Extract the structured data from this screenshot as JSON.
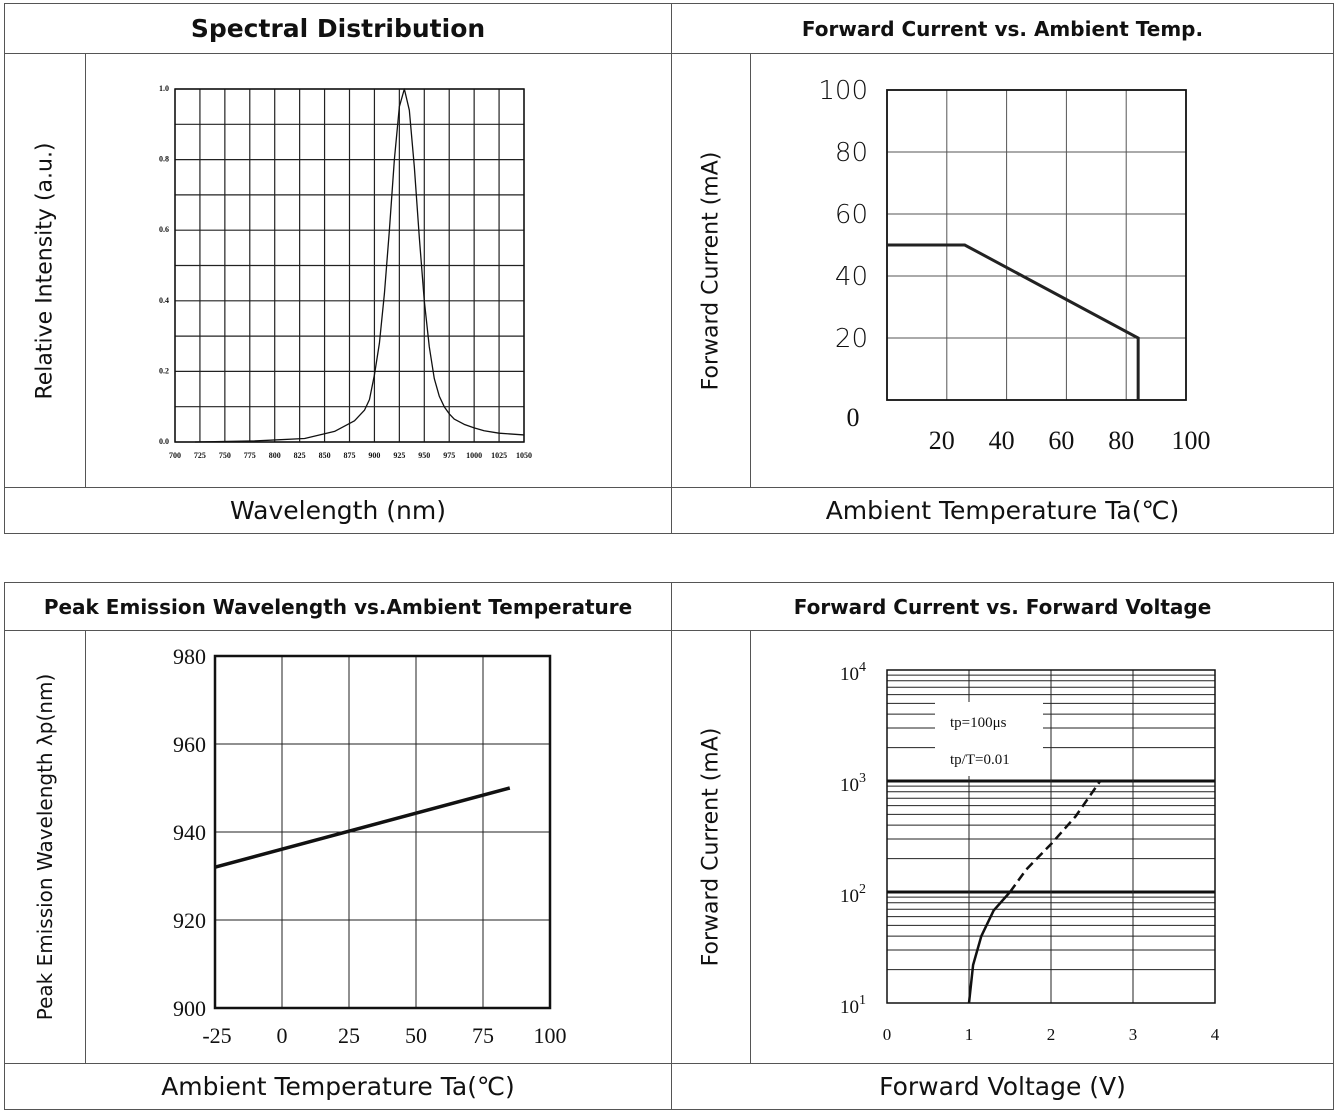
{
  "panels": {
    "spectral": {
      "title": "Spectral Distribution",
      "xlabel": "Wavelength (nm)",
      "ylabel": "Relative Intensity (a.u.)"
    },
    "fc_temp": {
      "title": "Forward Current vs. Ambient Temp.",
      "xlabel": "Ambient Temperature Ta(℃)",
      "ylabel": "Forward Current (mA)"
    },
    "peak_temp": {
      "title": "Peak Emission Wavelength vs.Ambient Temperature",
      "xlabel": "Ambient Temperature Ta(℃)",
      "ylabel": "Peak Emission Wavelength λp(nm)"
    },
    "fc_fv": {
      "title": "Forward Current vs. Forward Voltage",
      "xlabel": "Forward Voltage (V)",
      "ylabel": "Forward Current (mA)"
    }
  },
  "chart_data": [
    {
      "type": "line",
      "title": "Spectral Distribution",
      "xlabel": "Wavelength (nm)",
      "ylabel": "Relative Intensity (a.u.)",
      "x_ticks": [
        "700",
        "725",
        "750",
        "775",
        "800",
        "825",
        "850",
        "875",
        "900",
        "925",
        "950",
        "975",
        "1000",
        "1025",
        "1050"
      ],
      "y_ticks": [
        "0.0",
        "0.2",
        "0.4",
        "0.6",
        "0.8",
        "1.0"
      ],
      "xlim": [
        700,
        1050
      ],
      "ylim": [
        0,
        1
      ],
      "grid": true,
      "series": [
        {
          "x": [
            720,
            780,
            830,
            860,
            880,
            890,
            895,
            900,
            905,
            910,
            915,
            920,
            925,
            930,
            935,
            940,
            945,
            950,
            955,
            960,
            965,
            970,
            975,
            980,
            990,
            1000,
            1010,
            1025,
            1050
          ],
          "y": [
            0.0,
            0.003,
            0.01,
            0.03,
            0.06,
            0.09,
            0.12,
            0.19,
            0.28,
            0.42,
            0.6,
            0.8,
            0.95,
            1.0,
            0.94,
            0.78,
            0.58,
            0.4,
            0.27,
            0.18,
            0.13,
            0.1,
            0.08,
            0.065,
            0.05,
            0.04,
            0.032,
            0.025,
            0.02
          ]
        }
      ]
    },
    {
      "type": "line",
      "title": "Forward Current vs. Ambient Temp.",
      "xlabel": "Ambient Temperature Ta(℃)",
      "ylabel": "Forward Current (mA)",
      "x_ticks": [
        "20",
        "40",
        "60",
        "80",
        "100"
      ],
      "y_ticks": [
        "0",
        "20",
        "40",
        "60",
        "80",
        "100"
      ],
      "xlim": [
        0,
        100
      ],
      "ylim": [
        0,
        100
      ],
      "grid": true,
      "series": [
        {
          "x": [
            0,
            26,
            84,
            84
          ],
          "y": [
            50,
            50,
            20,
            0
          ]
        }
      ]
    },
    {
      "type": "line",
      "title": "Peak Emission Wavelength vs.Ambient Temperature",
      "xlabel": "Ambient Temperature Ta(℃)",
      "ylabel": "Peak Emission Wavelength λp(nm)",
      "x_ticks": [
        "-25",
        "0",
        "25",
        "50",
        "75",
        "100"
      ],
      "y_ticks": [
        "900",
        "920",
        "940",
        "960",
        "980"
      ],
      "xlim": [
        -25,
        100
      ],
      "ylim": [
        900,
        980
      ],
      "grid": true,
      "series": [
        {
          "x": [
            -25,
            85
          ],
          "y": [
            932,
            950
          ]
        }
      ]
    },
    {
      "type": "line",
      "title": "Forward Current vs. Forward Voltage",
      "xlabel": "Forward Voltage (V)",
      "ylabel": "Forward Current (mA)",
      "x_ticks": [
        "0",
        "1",
        "2",
        "3",
        "4"
      ],
      "y_ticks": [
        "10",
        "10",
        "10",
        "10"
      ],
      "y_tick_exponents": [
        "1",
        "2",
        "3",
        "4"
      ],
      "xlim": [
        0,
        4
      ],
      "ylim": [
        10,
        10000
      ],
      "y_scale": "log",
      "grid": true,
      "annotations": [
        "tp=100μs",
        "tp/T=0.01"
      ],
      "series": [
        {
          "x": [
            1.0,
            1.05,
            1.15,
            1.3,
            1.5
          ],
          "y": [
            10,
            22,
            40,
            68,
            100
          ],
          "style": "solid"
        },
        {
          "x": [
            1.5,
            1.7,
            2.0,
            2.3,
            2.6
          ],
          "y": [
            100,
            160,
            270,
            480,
            1000
          ],
          "style": "dashed"
        }
      ]
    }
  ]
}
